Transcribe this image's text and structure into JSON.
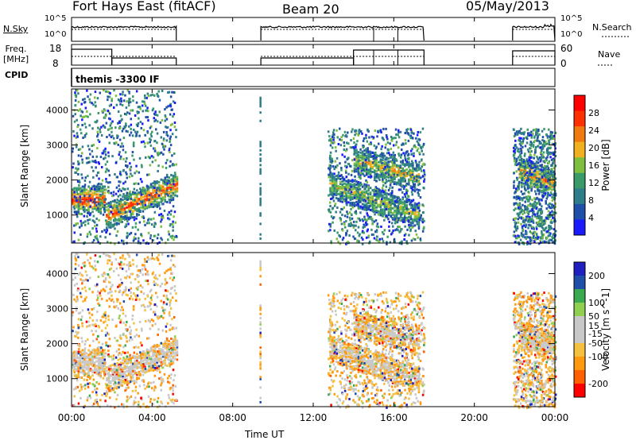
{
  "header": {
    "station": "Fort Hays East (fitACF)",
    "beam": "Beam 20",
    "date": "05/May/2013"
  },
  "time_axis": {
    "label": "Time UT",
    "ticks": [
      "00:00",
      "04:00",
      "08:00",
      "12:00",
      "16:00",
      "20:00",
      "00:00"
    ],
    "tick_hours": [
      0,
      4,
      8,
      12,
      16,
      20,
      24
    ]
  },
  "nsky_panel": {
    "left_label": "N.Sky",
    "right_label": "N.Search",
    "y_ticks": [
      "10^5",
      "10^0"
    ]
  },
  "freq_panel": {
    "left_label": "Freq. [MHz]",
    "left_ticks": [
      "18",
      "8"
    ],
    "right_label": "Nave",
    "right_ticks": [
      "60",
      "0"
    ]
  },
  "cpid": {
    "label": "CPID",
    "value": "themis -3300 IF"
  },
  "colors": {
    "power_scale": [
      "#1a1aff",
      "#1f4fa8",
      "#2f7d8a",
      "#3a9a6a",
      "#7fbf3f",
      "#f0b020",
      "#f07a10",
      "#ff3000",
      "#ff0000"
    ],
    "velocity_scale": [
      "#ff0000",
      "#ff6000",
      "#ff9a10",
      "#f5c040",
      "#c8c8c8",
      "#c8c8c8",
      "#90d050",
      "#3aaa50",
      "#1f4fa8",
      "#2020c0"
    ]
  },
  "chart_data": [
    {
      "type": "heatmap",
      "title": "",
      "xlabel": "Time UT",
      "ylabel": "Slant Range [km]",
      "xlim": [
        0,
        24
      ],
      "ylim": [
        200,
        4600
      ],
      "y_ticks": [
        1000,
        2000,
        3000,
        4000
      ],
      "colorbar": {
        "label": "Power [dB]",
        "ticks": [
          4,
          8,
          12,
          16,
          20,
          24,
          28
        ],
        "range": [
          0,
          32
        ]
      },
      "data_intervals_hours": [
        [
          0,
          5.2
        ],
        [
          9.3,
          9.35
        ],
        [
          12.7,
          17.5
        ],
        [
          21.9,
          24
        ]
      ],
      "features": [
        {
          "name": "strong early band",
          "t": [
            0,
            1.7
          ],
          "range_km": [
            1350,
            1600
          ],
          "power_db": 28
        },
        {
          "name": "rising band",
          "t": [
            1.7,
            5.2
          ],
          "range_km_start": 1000,
          "range_km_end": 1900,
          "power_db": 26
        },
        {
          "name": "upper band",
          "t": [
            14,
            17.3
          ],
          "range_km_start": 2600,
          "range_km_end": 2100,
          "power_db": 20
        },
        {
          "name": "lower band",
          "t": [
            12.8,
            17.3
          ],
          "range_km_start": 1900,
          "range_km_end": 1000,
          "power_db": 18
        },
        {
          "name": "late band",
          "t": [
            22.2,
            24
          ],
          "range_km_start": 2300,
          "range_km_end": 1900,
          "power_db": 24
        }
      ]
    },
    {
      "type": "heatmap",
      "title": "",
      "xlabel": "Time UT",
      "ylabel": "Slant Range [km]",
      "xlim": [
        0,
        24
      ],
      "ylim": [
        200,
        4600
      ],
      "y_ticks": [
        1000,
        2000,
        3000,
        4000
      ],
      "colorbar": {
        "label": "Velocity [m s^-1]",
        "ticks": [
          200,
          100,
          50,
          15,
          -15,
          -50,
          -100,
          -200
        ],
        "range": [
          -250,
          250
        ]
      },
      "features": [
        {
          "name": "ground scatter early",
          "t": [
            0,
            5.2
          ],
          "range_km": [
            1200,
            2200
          ],
          "velocity": 0
        },
        {
          "name": "ground scatter afternoon",
          "t": [
            12.7,
            17.5
          ],
          "range_km": [
            800,
            2700
          ],
          "velocity": 0
        },
        {
          "name": "ground scatter late",
          "t": [
            21.9,
            24
          ],
          "range_km": [
            800,
            2300
          ],
          "velocity": 0
        }
      ]
    }
  ]
}
